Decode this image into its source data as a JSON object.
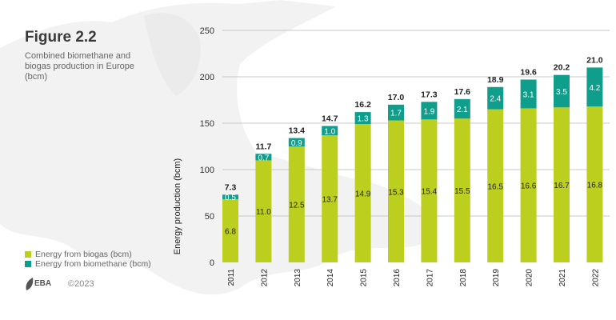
{
  "figure": {
    "title": "Figure 2.2",
    "subtitle": "Combined biomethane and biogas production in Europe (bcm)",
    "copyright": "©2023",
    "logo_text": "EBA"
  },
  "chart_data": {
    "type": "bar",
    "stacked": true,
    "ylabel": "Energy production (bcm)",
    "yticks": [
      "0",
      "50",
      "100",
      "150",
      "200",
      "250"
    ],
    "ylim": [
      0,
      250
    ],
    "grid": true,
    "legend_placement": "bottom-left",
    "categories": [
      "2011",
      "2012",
      "2013",
      "2014",
      "2015",
      "2016",
      "2017",
      "2018",
      "2019",
      "2020",
      "2021",
      "2022"
    ],
    "series": [
      {
        "name": "Energy from biogas (bcm)",
        "color": "#bccf1f",
        "values": [
          6.8,
          11.0,
          12.5,
          13.7,
          14.9,
          15.3,
          15.4,
          15.5,
          16.5,
          16.6,
          16.7,
          16.8
        ],
        "labels": [
          "6.8",
          "11.0",
          "12.5",
          "13.7",
          "14.9",
          "15.3",
          "15.4",
          "15.5",
          "16.5",
          "16.6",
          "16.7",
          "16.8"
        ]
      },
      {
        "name": "Energy from biomethane (bcm)",
        "color": "#0f9e8c",
        "values": [
          0.5,
          0.7,
          0.9,
          1.0,
          1.3,
          1.7,
          1.9,
          2.1,
          2.4,
          3.1,
          3.5,
          4.2
        ],
        "labels": [
          "0.5",
          "0.7",
          "0.9",
          "1.0",
          "1.3",
          "1.7",
          "1.9",
          "2.1",
          "2.4",
          "3.1",
          "3.5",
          "4.2"
        ]
      }
    ],
    "totals": [
      "7.3",
      "11.7",
      "13.4",
      "14.7",
      "16.2",
      "17.0",
      "17.3",
      "17.6",
      "18.9",
      "19.6",
      "20.2",
      "21.0"
    ]
  }
}
